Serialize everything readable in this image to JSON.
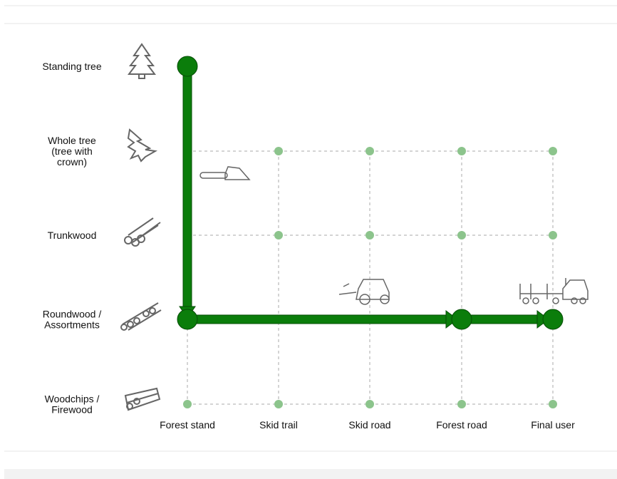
{
  "rows": [
    {
      "lines": [
        "Standing tree"
      ]
    },
    {
      "lines": [
        "Whole tree",
        "(tree with",
        "crown)"
      ]
    },
    {
      "lines": [
        "Trunkwood"
      ]
    },
    {
      "lines": [
        "Roundwood /",
        "Assortments"
      ]
    },
    {
      "lines": [
        "Woodchips /",
        "Firewood"
      ]
    }
  ],
  "columns": [
    "Forest stand",
    "Skid trail",
    "Skid road",
    "Forest road",
    "Final user"
  ]
}
